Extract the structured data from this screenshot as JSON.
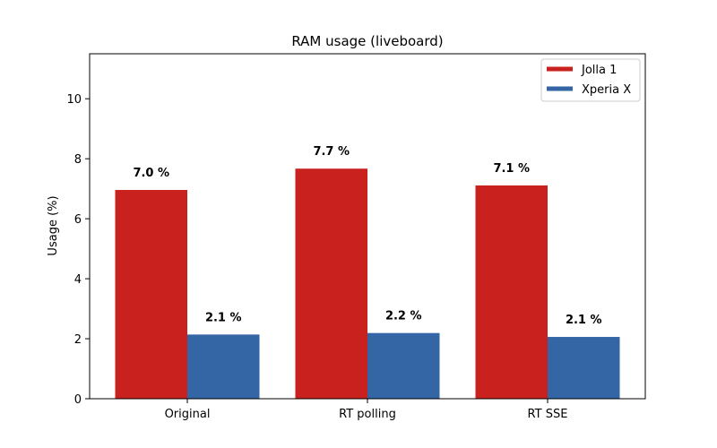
{
  "chart_data": {
    "type": "bar",
    "title": "RAM usage (liveboard)",
    "xlabel": "",
    "ylabel": "Usage (%)",
    "categories": [
      "Original",
      "RT polling",
      "RT SSE"
    ],
    "series": [
      {
        "name": "Jolla 1",
        "color": "#c9211e",
        "values": [
          6.96,
          7.67,
          7.11
        ],
        "labels": [
          "7.0 %",
          "7.7 %",
          "7.1 %"
        ]
      },
      {
        "name": "Xperia X",
        "color": "#3465a4",
        "values": [
          2.14,
          2.19,
          2.06
        ],
        "labels": [
          "2.1 %",
          "2.2 %",
          "2.1 %"
        ]
      }
    ],
    "ylim": [
      0,
      11.5
    ],
    "yticks": [
      0,
      2,
      4,
      6,
      8,
      10
    ],
    "legend_position": "top-right",
    "grid": false
  }
}
